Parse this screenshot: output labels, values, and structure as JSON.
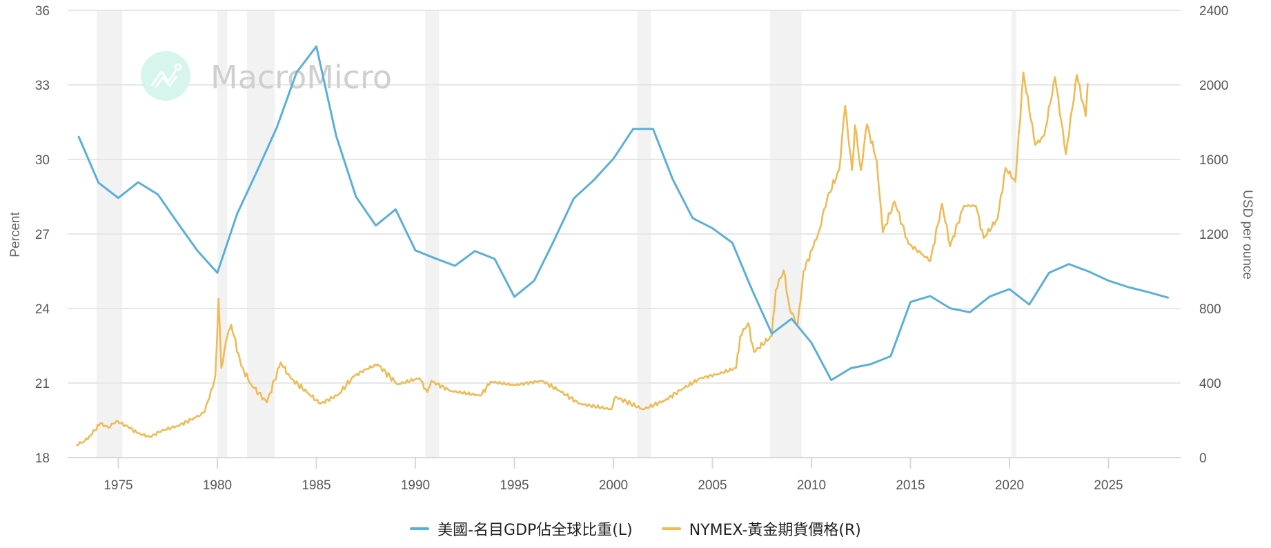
{
  "watermark": {
    "text": "MacroMicro"
  },
  "chart_data": {
    "type": "line",
    "title": "",
    "xlabel": "",
    "x_ticks": [
      1975,
      1980,
      1985,
      1990,
      1995,
      2000,
      2005,
      2010,
      2015,
      2020,
      2025
    ],
    "xlim": [
      1972.4,
      2028.9
    ],
    "grid": true,
    "legend_position": "bottom",
    "left_axis": {
      "label": "Percent",
      "ylim": [
        18,
        36
      ],
      "ticks": [
        18,
        21,
        24,
        27,
        30,
        33,
        36
      ]
    },
    "right_axis": {
      "label": "USD per ounce",
      "ylim": [
        0,
        2400
      ],
      "ticks": [
        0,
        400,
        800,
        1200,
        1600,
        2000,
        2400
      ]
    },
    "recession_bands": [
      [
        1973.9,
        1975.2
      ],
      [
        1980.0,
        1980.5
      ],
      [
        1981.5,
        1982.9
      ],
      [
        1990.5,
        1991.2
      ],
      [
        2001.2,
        2001.9
      ],
      [
        2007.9,
        2009.5
      ],
      [
        2020.1,
        2020.35
      ]
    ],
    "series": [
      {
        "name": "美國-名目GDP佔全球比重(L)",
        "axis": "left",
        "color": "#5aafd8",
        "x": [
          1973,
          1974,
          1975,
          1976,
          1977,
          1978,
          1979,
          1980,
          1981,
          1982,
          1983,
          1984,
          1985,
          1986,
          1987,
          1988,
          1989,
          1990,
          1991,
          1992,
          1993,
          1994,
          1995,
          1996,
          1997,
          1998,
          1999,
          2000,
          2001,
          2002,
          2003,
          2004,
          2005,
          2006,
          2007,
          2008,
          2009,
          2010,
          2011,
          2012,
          2013,
          2014,
          2015,
          2016,
          2017,
          2018,
          2019,
          2020,
          2021,
          2022,
          2023,
          2024,
          2025,
          2026,
          2027,
          2028
        ],
        "values": [
          30.91,
          29.06,
          28.45,
          29.08,
          28.59,
          27.44,
          26.32,
          25.44,
          27.81,
          29.52,
          31.28,
          33.5,
          34.55,
          30.95,
          28.5,
          27.34,
          27.99,
          26.34,
          26.02,
          25.72,
          26.31,
          26.0,
          24.47,
          25.12,
          26.74,
          28.43,
          29.16,
          30.03,
          31.23,
          31.23,
          29.19,
          27.64,
          27.23,
          26.65,
          24.75,
          22.99,
          23.59,
          22.62,
          21.12,
          21.6,
          21.76,
          22.08,
          24.26,
          24.5,
          24.01,
          23.85,
          24.48,
          24.78,
          24.16,
          25.44,
          25.79,
          25.49,
          25.12,
          24.86,
          24.66,
          24.44
        ]
      },
      {
        "name": "NYMEX-黃金期貨價格(R)",
        "axis": "right",
        "color": "#eebb55",
        "x": [
          1972.9,
          1973.3,
          1973.6,
          1974.1,
          1974.5,
          1974.9,
          1975.5,
          1976.0,
          1976.6,
          1977.2,
          1978.0,
          1978.9,
          1979.3,
          1979.6,
          1979.9,
          1980.06,
          1980.2,
          1980.5,
          1980.7,
          1981.2,
          1981.7,
          1982.5,
          1983.2,
          1983.7,
          1984.6,
          1985.2,
          1986.1,
          1986.9,
          1987.5,
          1988.1,
          1989.1,
          1990.2,
          1990.6,
          1990.8,
          1991.8,
          1993.3,
          1993.8,
          1995.0,
          1996.4,
          1997.3,
          1998.3,
          1999.9,
          2000.1,
          2001.5,
          2002.6,
          2003.5,
          2004.4,
          2005.3,
          2006.2,
          2006.4,
          2006.8,
          2007.1,
          2008.0,
          2008.2,
          2008.6,
          2008.9,
          2009.3,
          2009.6,
          2010.1,
          2010.4,
          2010.8,
          2011.4,
          2011.7,
          2012.05,
          2012.2,
          2012.5,
          2012.8,
          2013.3,
          2013.6,
          2014.2,
          2014.9,
          2015.6,
          2016.0,
          2016.6,
          2017.0,
          2017.7,
          2018.3,
          2018.7,
          2019.4,
          2019.8,
          2020.3,
          2020.7,
          2021.3,
          2021.75,
          2022.3,
          2022.85,
          2023.4,
          2023.85,
          2023.95
        ],
        "values": [
          67,
          90,
          120,
          185,
          160,
          196,
          165,
          130,
          111,
          145,
          170,
          215,
          240,
          318,
          440,
          852,
          481,
          650,
          714,
          493,
          393,
          296,
          511,
          426,
          344,
          289,
          337,
          437,
          474,
          500,
          393,
          426,
          352,
          411,
          357,
          333,
          407,
          389,
          412,
          357,
          289,
          259,
          326,
          259,
          307,
          370,
          426,
          449,
          481,
          650,
          722,
          567,
          653,
          900,
          1005,
          800,
          709,
          1000,
          1134,
          1222,
          1394,
          1542,
          1888,
          1542,
          1783,
          1542,
          1789,
          1591,
          1209,
          1375,
          1147,
          1091,
          1054,
          1363,
          1134,
          1351,
          1351,
          1178,
          1283,
          1554,
          1480,
          2067,
          1678,
          1727,
          2042,
          1628,
          2054,
          1832,
          2005
        ]
      }
    ]
  },
  "legend": {
    "items": [
      {
        "label": "美國-名目GDP佔全球比重(L)",
        "color": "#5aafd8"
      },
      {
        "label": "NYMEX-黃金期貨價格(R)",
        "color": "#eebb55"
      }
    ]
  }
}
